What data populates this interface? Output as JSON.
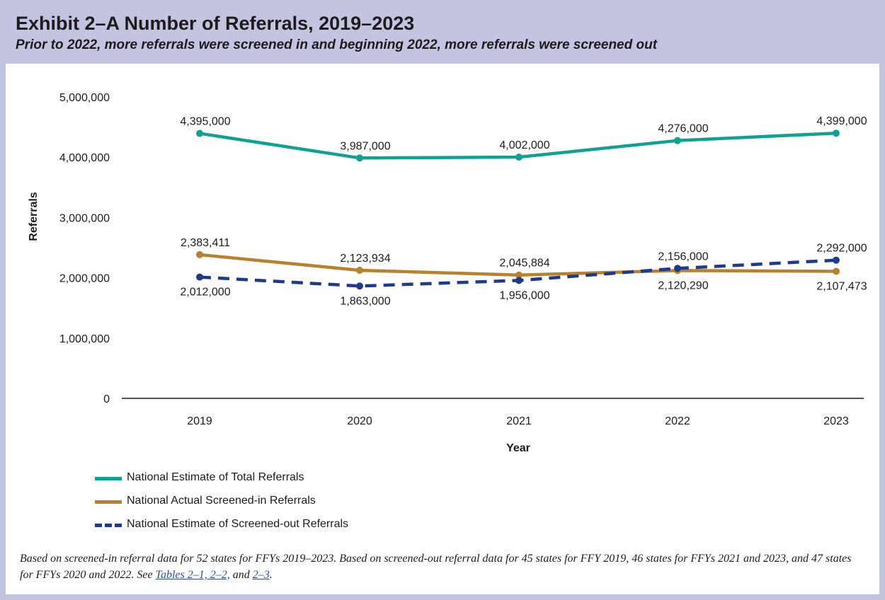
{
  "header": {
    "title": "Exhibit 2–A Number of Referrals, 2019–2023",
    "subtitle": "Prior to 2022, more referrals were screened in and beginning 2022, more referrals were screened out"
  },
  "chart_data": {
    "type": "line",
    "title": "Exhibit 2–A Number of Referrals, 2019–2023",
    "subtitle": "Prior to 2022, more referrals were screened in and beginning 2022, more referrals were screened out",
    "xlabel": "Year",
    "ylabel": "Referrals",
    "categories": [
      "2019",
      "2020",
      "2021",
      "2022",
      "2023"
    ],
    "ylim": [
      0,
      5000000
    ],
    "yticks": [
      0,
      1000000,
      2000000,
      3000000,
      4000000,
      5000000
    ],
    "ytick_labels": [
      "0",
      "1,000,000",
      "2,000,000",
      "3,000,000",
      "4,000,000",
      "5,000,000"
    ],
    "grid": false,
    "legend_position": "bottom-left",
    "series": [
      {
        "name": "National Estimate of Total Referrals",
        "values": [
          4395000,
          3987000,
          4002000,
          4276000,
          4399000
        ],
        "labels": [
          "4,395,000",
          "3,987,000",
          "4,002,000",
          "4,276,000",
          "4,399,000"
        ],
        "color": "#0fa294",
        "style": "solid"
      },
      {
        "name": "National Actual Screened-in Referrals",
        "values": [
          2383411,
          2123934,
          2045884,
          2120290,
          2107473
        ],
        "labels": [
          "2,383,411",
          "2,123,934",
          "2,045,884",
          "2,120,290",
          "2,107,473"
        ],
        "color": "#b8812d",
        "style": "solid"
      },
      {
        "name": "National Estimate of Screened-out Referrals",
        "values": [
          2012000,
          1863000,
          1956000,
          2156000,
          2292000
        ],
        "labels": [
          "2,012,000",
          "1,863,000",
          "1,956,000",
          "2,156,000",
          "2,292,000"
        ],
        "color": "#1f3a8a",
        "style": "dashed"
      }
    ]
  },
  "legend": [
    "National Estimate of Total Referrals",
    "National Actual Screened-in Referrals",
    "National Estimate of Screened-out Referrals"
  ],
  "note": {
    "text": "Based on screened-in referral data for 52 states for FFYs 2019–2023. Based on screened-out referral data for 45 states for FFY 2019, 46 states for FFYs 2021 and 2023, and 47 states for FFYs 2020 and 2022. See ",
    "link1": "Tables 2–1, 2–2,",
    "mid": " and ",
    "link2": "2–3",
    "end": "."
  }
}
